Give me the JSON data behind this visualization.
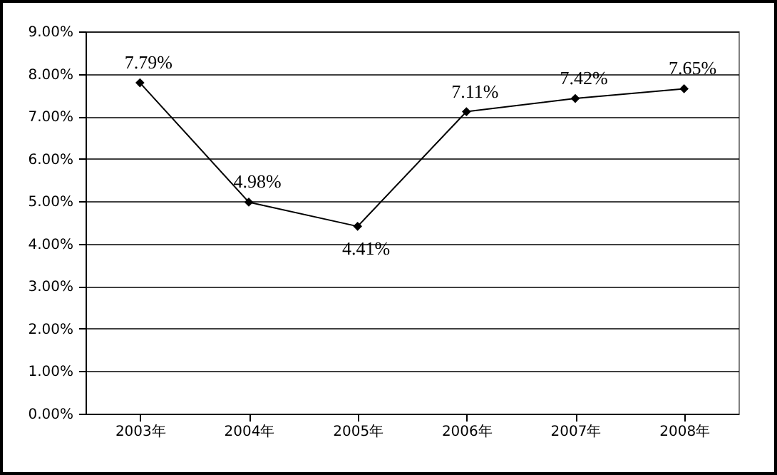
{
  "chart_data": {
    "type": "line",
    "categories": [
      "2003年",
      "2004年",
      "2005年",
      "2006年",
      "2007年",
      "2008年"
    ],
    "series": [
      {
        "color": "#000000",
        "values": [
          7.79,
          4.98,
          4.41,
          7.11,
          7.42,
          7.65
        ],
        "value_labels": [
          "7.79%",
          "4.98%",
          "4.41%",
          "7.11%",
          "7.42%",
          "7.65%"
        ]
      }
    ],
    "ylim": [
      0,
      9
    ],
    "yticks": [
      {
        "value": 0,
        "label": "0.00%"
      },
      {
        "value": 1,
        "label": "1.00%"
      },
      {
        "value": 2,
        "label": "2.00%"
      },
      {
        "value": 3,
        "label": "3.00%"
      },
      {
        "value": 4,
        "label": "4.00%"
      },
      {
        "value": 5,
        "label": "5.00%"
      },
      {
        "value": 6,
        "label": "6.00%"
      },
      {
        "value": 7,
        "label": "7.00%"
      },
      {
        "value": 8,
        "label": "8.00%"
      },
      {
        "value": 9,
        "label": "9.00%"
      }
    ],
    "grid": "y",
    "marker": "diamond",
    "line_style": "solid"
  }
}
